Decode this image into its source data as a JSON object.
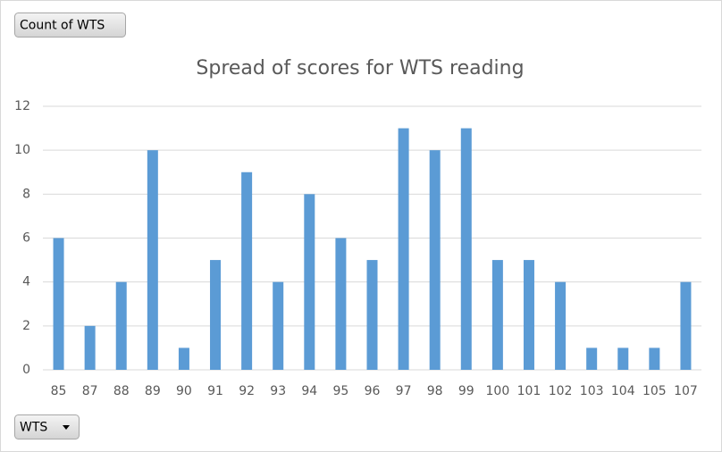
{
  "chart_data": {
    "type": "bar",
    "title": "Spread of scores for WTS reading",
    "value_field_button": "Count of WTS",
    "axis_field_button": "WTS",
    "categories": [
      "85",
      "87",
      "88",
      "89",
      "90",
      "91",
      "92",
      "93",
      "94",
      "95",
      "96",
      "97",
      "98",
      "99",
      "100",
      "101",
      "102",
      "103",
      "104",
      "105",
      "107"
    ],
    "values": [
      6,
      2,
      4,
      10,
      1,
      5,
      9,
      4,
      8,
      6,
      5,
      11,
      10,
      11,
      5,
      5,
      4,
      1,
      1,
      1,
      4
    ],
    "color": "#5b9bd5",
    "ylim": [
      0,
      12
    ],
    "yticks": [
      0,
      2,
      4,
      6,
      8,
      10,
      12
    ],
    "grid": true
  }
}
